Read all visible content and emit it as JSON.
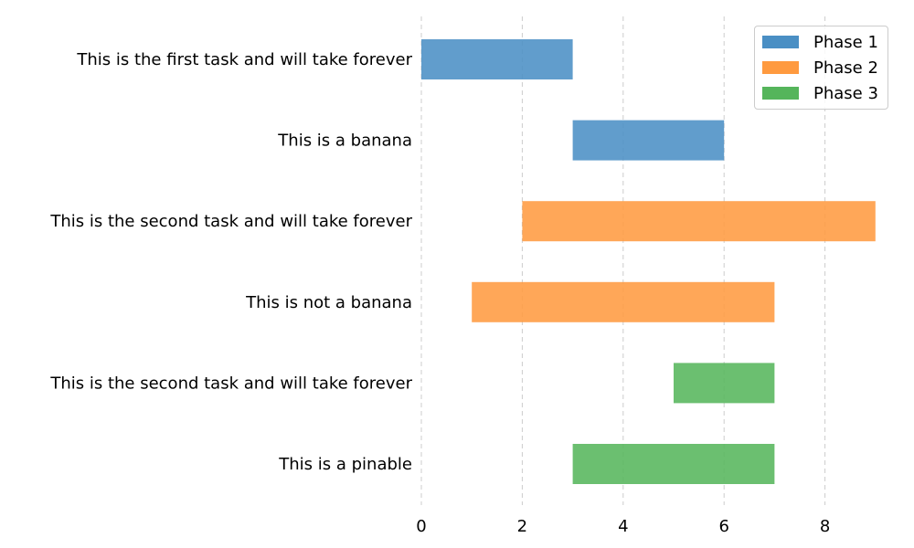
{
  "chart_data": {
    "type": "bar",
    "orientation": "horizontal",
    "style": "gantt",
    "tasks": [
      {
        "label": "This is the first task and will take forever",
        "start": 0,
        "end": 3,
        "phase": "Phase 1"
      },
      {
        "label": "This is a banana",
        "start": 3,
        "end": 6,
        "phase": "Phase 1"
      },
      {
        "label": "This is the second task and will take forever",
        "start": 2,
        "end": 9,
        "phase": "Phase 2"
      },
      {
        "label": "This is not a banana",
        "start": 1,
        "end": 7,
        "phase": "Phase 2"
      },
      {
        "label": "This is the second task and will take forever",
        "start": 5,
        "end": 7,
        "phase": "Phase 3"
      },
      {
        "label": "This is a pinable",
        "start": 3,
        "end": 7,
        "phase": "Phase 3"
      }
    ],
    "series": [
      {
        "name": "Phase 1",
        "color": "#4a8fc4"
      },
      {
        "name": "Phase 2",
        "color": "#ff9a3f"
      },
      {
        "name": "Phase 3",
        "color": "#55b55b"
      }
    ],
    "xticks": [
      0,
      2,
      4,
      6,
      8
    ],
    "xlim": [
      0,
      9
    ],
    "xlabel": "",
    "ylabel": "",
    "title": "",
    "grid": "x-dashed",
    "legend_position": "top-right"
  }
}
